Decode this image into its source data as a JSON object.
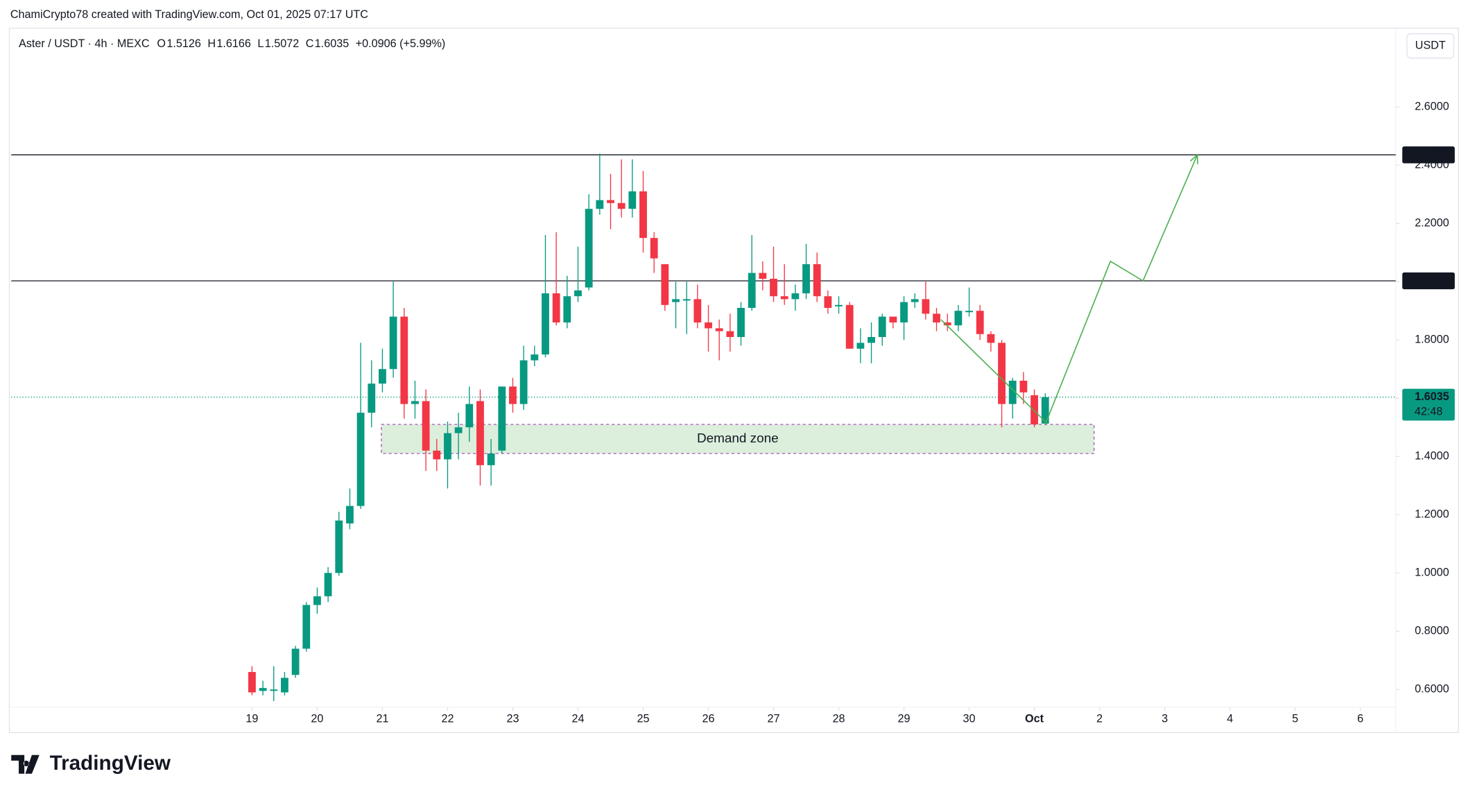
{
  "header": {
    "attribution": "ChamiCrypto78 created with TradingView.com, Oct 01, 2025 07:17 UTC"
  },
  "footer": {
    "logo": "TradingView"
  },
  "chart_data": {
    "type": "candlestick",
    "title": "Aster / USDT · 4h · MEXC",
    "ohlc_letters": [
      "O",
      "H",
      "L",
      "C"
    ],
    "change": "+0.0906 (+5.99%)",
    "up_color": "#089981",
    "down_color": "#f23645",
    "open": [
      0.66,
      0.595,
      0.6,
      0.59,
      0.65,
      0.74,
      0.89,
      0.92,
      1.0,
      1.17,
      1.23,
      1.55,
      1.65,
      1.7,
      1.88,
      1.58,
      1.59,
      1.42,
      1.39,
      1.48,
      1.5,
      1.59,
      1.37,
      1.42,
      1.64,
      1.58,
      1.73,
      1.75,
      1.96,
      1.86,
      1.95,
      1.98,
      2.25,
      2.28,
      2.27,
      2.25,
      2.31,
      2.15,
      2.06,
      1.93,
      1.94,
      1.94,
      1.86,
      1.84,
      1.83,
      1.81,
      1.91,
      2.03,
      2.01,
      1.95,
      1.94,
      1.96,
      2.06,
      1.95,
      1.92,
      1.92,
      1.77,
      1.79,
      1.81,
      1.88,
      1.86,
      1.93,
      1.94,
      1.89,
      1.86,
      1.85,
      1.9,
      1.9,
      1.82,
      1.79,
      1.58,
      1.66,
      1.61,
      1.5126
    ],
    "high": [
      0.68,
      0.63,
      0.68,
      0.66,
      0.75,
      0.9,
      0.95,
      1.02,
      1.21,
      1.29,
      1.79,
      1.73,
      1.77,
      2.0,
      1.91,
      1.66,
      1.63,
      1.46,
      1.52,
      1.55,
      1.64,
      1.63,
      1.46,
      1.64,
      1.67,
      1.78,
      1.78,
      2.16,
      2.17,
      2.02,
      2.12,
      2.3,
      2.44,
      2.37,
      2.42,
      2.42,
      2.38,
      2.17,
      2.06,
      2.0,
      2.0,
      1.99,
      1.92,
      1.87,
      1.89,
      1.93,
      2.16,
      2.07,
      2.12,
      2.06,
      1.99,
      2.13,
      2.1,
      1.97,
      1.95,
      1.93,
      1.84,
      1.86,
      1.89,
      1.88,
      1.95,
      1.96,
      2.0,
      1.91,
      1.89,
      1.92,
      1.98,
      1.92,
      1.83,
      1.8,
      1.67,
      1.69,
      1.63,
      1.6166
    ],
    "low": [
      0.58,
      0.58,
      0.56,
      0.58,
      0.64,
      0.73,
      0.86,
      0.9,
      0.99,
      1.15,
      1.22,
      1.5,
      1.62,
      1.67,
      1.53,
      1.53,
      1.35,
      1.35,
      1.29,
      1.39,
      1.45,
      1.3,
      1.3,
      1.41,
      1.55,
      1.56,
      1.71,
      1.74,
      1.85,
      1.84,
      1.93,
      1.97,
      2.23,
      2.18,
      2.22,
      2.22,
      2.1,
      2.03,
      1.9,
      1.84,
      1.82,
      1.84,
      1.76,
      1.73,
      1.76,
      1.78,
      1.9,
      1.97,
      1.93,
      1.92,
      1.9,
      1.94,
      1.93,
      1.89,
      1.89,
      1.77,
      1.72,
      1.72,
      1.78,
      1.84,
      1.8,
      1.91,
      1.87,
      1.83,
      1.83,
      1.83,
      1.88,
      1.8,
      1.76,
      1.5,
      1.53,
      1.58,
      1.5,
      1.5072
    ],
    "close": [
      0.59,
      0.605,
      0.6,
      0.64,
      0.74,
      0.89,
      0.92,
      1.0,
      1.18,
      1.23,
      1.55,
      1.65,
      1.7,
      1.88,
      1.58,
      1.59,
      1.42,
      1.39,
      1.48,
      1.5,
      1.58,
      1.37,
      1.41,
      1.64,
      1.58,
      1.73,
      1.75,
      1.96,
      1.86,
      1.95,
      1.97,
      2.25,
      2.28,
      2.27,
      2.25,
      2.31,
      2.15,
      2.08,
      1.92,
      1.94,
      1.94,
      1.86,
      1.84,
      1.83,
      1.81,
      1.91,
      2.03,
      2.01,
      1.95,
      1.94,
      1.96,
      2.06,
      1.95,
      1.91,
      1.92,
      1.77,
      1.79,
      1.81,
      1.88,
      1.86,
      1.93,
      1.94,
      1.89,
      1.86,
      1.85,
      1.9,
      1.9,
      1.82,
      1.79,
      1.58,
      1.66,
      1.62,
      1.51,
      1.6035
    ],
    "xlim": [
      -22.16,
      105.26
    ],
    "xticks": [
      {
        "value": 0,
        "label": "19"
      },
      {
        "value": 6,
        "label": "20"
      },
      {
        "value": 12,
        "label": "21"
      },
      {
        "value": 18,
        "label": "22"
      },
      {
        "value": 24,
        "label": "23"
      },
      {
        "value": 30,
        "label": "24"
      },
      {
        "value": 36,
        "label": "25"
      },
      {
        "value": 42,
        "label": "26"
      },
      {
        "value": 48,
        "label": "27"
      },
      {
        "value": 54,
        "label": "28"
      },
      {
        "value": 60,
        "label": "29"
      },
      {
        "value": 66,
        "label": "30"
      },
      {
        "value": 72,
        "label": "Oct"
      },
      {
        "value": 78,
        "label": "2"
      },
      {
        "value": 84,
        "label": "3"
      },
      {
        "value": 90,
        "label": "4"
      },
      {
        "value": 96,
        "label": "5"
      },
      {
        "value": 102,
        "label": "6"
      }
    ],
    "ylim": [
      0.539,
      2.864
    ],
    "yticks": [
      {
        "value": 0.6,
        "label": "0.6000"
      },
      {
        "value": 0.8,
        "label": "0.8000"
      },
      {
        "value": 1.0,
        "label": "1.0000"
      },
      {
        "value": 1.2,
        "label": "1.2000"
      },
      {
        "value": 1.4,
        "label": "1.4000"
      },
      {
        "value": 1.6,
        "label": "1.6000"
      },
      {
        "value": 1.8,
        "label": "1.8000"
      },
      {
        "value": 2.0,
        "label": "2.0000"
      },
      {
        "value": 2.2,
        "label": "2.2000"
      },
      {
        "value": 2.4,
        "label": "2.4000"
      },
      {
        "value": 2.6,
        "label": "2.6000"
      }
    ],
    "y_axis_label": "USDT",
    "levels": [
      2.4353,
      2.0028
    ],
    "countdown": "42:48",
    "demand_zone": {
      "label": "Demand zone",
      "x": [
        11.9,
        77.5
      ],
      "y": [
        1.41,
        1.51
      ]
    },
    "trendline": {
      "x": [
        63.4,
        73
      ],
      "y": [
        1.87,
        1.52
      ]
    },
    "projection": {
      "color": "#4caf50",
      "x": [
        73,
        79,
        82,
        87
      ],
      "y": [
        1.51,
        2.07,
        2.0028,
        2.4353
      ]
    }
  }
}
